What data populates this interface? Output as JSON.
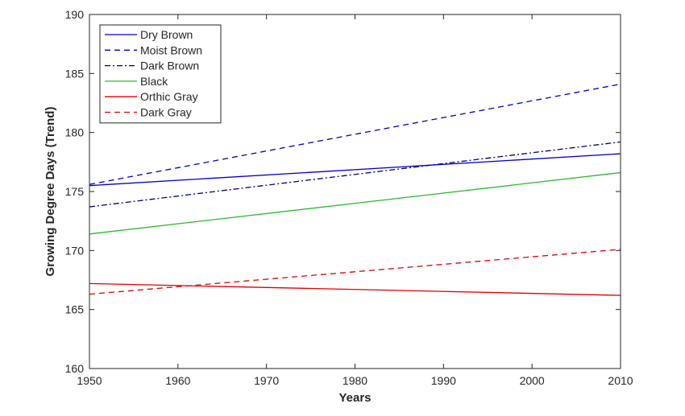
{
  "chart_data": {
    "type": "line",
    "xlabel": "Years",
    "ylabel": "Growing Degree Days (Trend)",
    "xlim": [
      1950,
      2010
    ],
    "ylim": [
      160,
      190
    ],
    "xticks": [
      1950,
      1960,
      1970,
      1980,
      1990,
      2000,
      2010
    ],
    "yticks": [
      160,
      165,
      170,
      175,
      180,
      185,
      190
    ],
    "grid": false,
    "legend_position": "top-left",
    "x": [
      1950,
      2010
    ],
    "series": [
      {
        "name": "Dry Brown",
        "values": [
          175.5,
          178.2
        ],
        "color": "#0000cc",
        "dash": "solid"
      },
      {
        "name": "Moist Brown",
        "values": [
          175.6,
          184.1
        ],
        "color": "#0000cc",
        "dash": "dashed"
      },
      {
        "name": "Dark Brown",
        "values": [
          173.7,
          179.2
        ],
        "color": "#000080",
        "dash": "dashdot"
      },
      {
        "name": "Black",
        "values": [
          171.4,
          176.6
        ],
        "color": "#2db82d",
        "dash": "solid"
      },
      {
        "name": "Orthic Gray",
        "values": [
          167.2,
          166.2
        ],
        "color": "#e00000",
        "dash": "solid"
      },
      {
        "name": "Dark Gray",
        "values": [
          166.3,
          170.1
        ],
        "color": "#e00000",
        "dash": "dashed"
      }
    ]
  }
}
